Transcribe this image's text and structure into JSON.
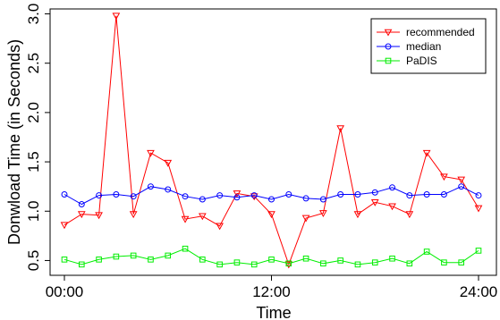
{
  "chart_data": {
    "type": "line",
    "title": "",
    "xlabel": "Time",
    "ylabel": "Donwload Time (in Seconds)",
    "x": [
      0,
      1,
      2,
      3,
      4,
      5,
      6,
      7,
      8,
      9,
      10,
      11,
      12,
      13,
      14,
      15,
      16,
      17,
      18,
      19,
      20,
      21,
      22,
      23,
      24
    ],
    "xlim": [
      0,
      24
    ],
    "ylim": [
      0.35,
      3.05
    ],
    "x_ticks": [
      0,
      12,
      24
    ],
    "x_tick_labels": [
      "00:00",
      "12:00",
      "24:00"
    ],
    "y_ticks": [
      0.5,
      1.0,
      1.5,
      2.0,
      2.5,
      3.0
    ],
    "y_tick_labels": [
      "0.5",
      "1.0",
      "1.5",
      "2.0",
      "2.5",
      "3.0"
    ],
    "grid": false,
    "legend_position": "top-right",
    "series": [
      {
        "name": "recommended",
        "color": "#ff0000",
        "marker": "triangle-down",
        "values": [
          0.86,
          0.97,
          0.96,
          2.98,
          0.97,
          1.59,
          1.49,
          0.92,
          0.95,
          0.85,
          1.18,
          1.15,
          0.97,
          0.46,
          0.93,
          0.98,
          1.84,
          0.97,
          1.09,
          1.05,
          0.97,
          1.59,
          1.35,
          1.32,
          1.03
        ]
      },
      {
        "name": "median",
        "color": "#0000ff",
        "marker": "circle",
        "values": [
          1.17,
          1.07,
          1.16,
          1.17,
          1.15,
          1.25,
          1.22,
          1.15,
          1.12,
          1.16,
          1.14,
          1.16,
          1.12,
          1.17,
          1.13,
          1.12,
          1.17,
          1.17,
          1.19,
          1.24,
          1.16,
          1.17,
          1.17,
          1.25,
          1.16
        ]
      },
      {
        "name": "PaDIS",
        "color": "#00ee00",
        "marker": "square",
        "values": [
          0.51,
          0.46,
          0.51,
          0.54,
          0.55,
          0.51,
          0.55,
          0.62,
          0.51,
          0.46,
          0.48,
          0.46,
          0.51,
          0.47,
          0.52,
          0.47,
          0.5,
          0.46,
          0.48,
          0.52,
          0.47,
          0.59,
          0.48,
          0.48,
          0.6
        ]
      }
    ]
  }
}
